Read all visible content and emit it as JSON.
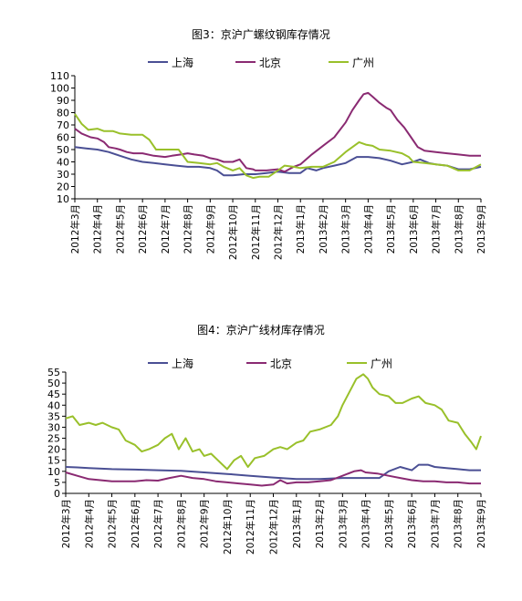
{
  "colors": {
    "上海": "#4a4f94",
    "北京": "#8a2a72",
    "广州": "#99c02a"
  },
  "chart_data": [
    {
      "type": "line",
      "title": "图3：京沪广螺纹钢库存情况",
      "ylim": [
        10,
        110
      ],
      "yticks": [
        10,
        20,
        30,
        40,
        50,
        60,
        70,
        80,
        90,
        100,
        110
      ],
      "x_tick_labels": [
        "2012年3月",
        "2012年4月",
        "2012年5月",
        "2012年6月",
        "2012年7月",
        "2012年8月",
        "2012年9月",
        "2012年10月",
        "2012年11月",
        "2012年12月",
        "2013年1月",
        "2013年2月",
        "2013年3月",
        "2013年4月",
        "2013年5月",
        "2013年6月",
        "2013年7月",
        "2013年8月",
        "2013年9月"
      ],
      "x_range": [
        0,
        18
      ],
      "grid": false,
      "legend_position": "top",
      "series": [
        {
          "name": "上海",
          "values": [
            [
              0,
              52
            ],
            [
              0.5,
              51
            ],
            [
              1,
              50
            ],
            [
              1.5,
              48
            ],
            [
              2,
              45
            ],
            [
              2.5,
              42
            ],
            [
              3,
              40
            ],
            [
              3.5,
              39
            ],
            [
              4,
              38
            ],
            [
              4.5,
              37
            ],
            [
              5,
              36
            ],
            [
              5.5,
              36
            ],
            [
              6,
              35
            ],
            [
              6.3,
              33
            ],
            [
              6.6,
              29
            ],
            [
              7,
              29
            ],
            [
              7.5,
              30
            ],
            [
              8,
              30
            ],
            [
              8.5,
              31
            ],
            [
              9,
              32
            ],
            [
              9.5,
              31
            ],
            [
              10,
              31
            ],
            [
              10.3,
              35
            ],
            [
              10.7,
              33
            ],
            [
              11,
              35
            ],
            [
              11.5,
              37
            ],
            [
              12,
              39
            ],
            [
              12.5,
              44
            ],
            [
              13,
              44
            ],
            [
              13.5,
              43
            ],
            [
              14,
              41
            ],
            [
              14.5,
              38
            ],
            [
              15,
              40
            ],
            [
              15.3,
              42
            ],
            [
              15.7,
              39
            ],
            [
              16,
              38
            ],
            [
              16.5,
              37
            ],
            [
              17,
              34
            ],
            [
              17.5,
              34
            ],
            [
              18,
              36
            ]
          ]
        },
        {
          "name": "北京",
          "values": [
            [
              0,
              67
            ],
            [
              0.3,
              63
            ],
            [
              0.7,
              60
            ],
            [
              1,
              59
            ],
            [
              1.3,
              56
            ],
            [
              1.5,
              52
            ],
            [
              1.8,
              51
            ],
            [
              2,
              50
            ],
            [
              2.3,
              48
            ],
            [
              2.6,
              47
            ],
            [
              3,
              47
            ],
            [
              3.5,
              45
            ],
            [
              4,
              44
            ],
            [
              4.3,
              45
            ],
            [
              4.7,
              46
            ],
            [
              5,
              47
            ],
            [
              5.3,
              46
            ],
            [
              5.7,
              45
            ],
            [
              6,
              43
            ],
            [
              6.3,
              42
            ],
            [
              6.6,
              40
            ],
            [
              7,
              40
            ],
            [
              7.3,
              42
            ],
            [
              7.6,
              35
            ],
            [
              7.9,
              34
            ],
            [
              8,
              33
            ],
            [
              8.5,
              33
            ],
            [
              9,
              34
            ],
            [
              9.3,
              32
            ],
            [
              9.7,
              36
            ],
            [
              10,
              38
            ],
            [
              10.5,
              46
            ],
            [
              11,
              53
            ],
            [
              11.5,
              60
            ],
            [
              12,
              72
            ],
            [
              12.3,
              82
            ],
            [
              12.6,
              90
            ],
            [
              12.8,
              95
            ],
            [
              13,
              96
            ],
            [
              13.2,
              93
            ],
            [
              13.5,
              88
            ],
            [
              13.8,
              84
            ],
            [
              14,
              82
            ],
            [
              14.3,
              74
            ],
            [
              14.6,
              68
            ],
            [
              14.9,
              60
            ],
            [
              15.2,
              52
            ],
            [
              15.5,
              49
            ],
            [
              16,
              48
            ],
            [
              16.5,
              47
            ],
            [
              17,
              46
            ],
            [
              17.5,
              45
            ],
            [
              18,
              45
            ]
          ]
        },
        {
          "name": "广州",
          "values": [
            [
              0,
              79
            ],
            [
              0.3,
              71
            ],
            [
              0.6,
              66
            ],
            [
              1,
              67
            ],
            [
              1.3,
              65
            ],
            [
              1.7,
              65
            ],
            [
              2,
              63
            ],
            [
              2.5,
              62
            ],
            [
              3,
              62
            ],
            [
              3.3,
              58
            ],
            [
              3.6,
              50
            ],
            [
              4,
              50
            ],
            [
              4.3,
              50
            ],
            [
              4.6,
              50
            ],
            [
              5,
              40
            ],
            [
              5.5,
              39
            ],
            [
              6,
              38
            ],
            [
              6.3,
              39
            ],
            [
              6.6,
              36
            ],
            [
              7,
              33
            ],
            [
              7.3,
              35
            ],
            [
              7.6,
              29
            ],
            [
              7.9,
              27
            ],
            [
              8.2,
              28
            ],
            [
              8.6,
              28
            ],
            [
              9,
              33
            ],
            [
              9.3,
              37
            ],
            [
              9.7,
              36
            ],
            [
              10,
              35
            ],
            [
              10.5,
              36
            ],
            [
              11,
              36
            ],
            [
              11.5,
              40
            ],
            [
              12,
              48
            ],
            [
              12.3,
              52
            ],
            [
              12.6,
              56
            ],
            [
              12.9,
              54
            ],
            [
              13.2,
              53
            ],
            [
              13.5,
              50
            ],
            [
              14,
              49
            ],
            [
              14.5,
              47
            ],
            [
              14.8,
              44
            ],
            [
              15,
              40
            ],
            [
              15.5,
              39
            ],
            [
              16,
              38
            ],
            [
              16.5,
              37
            ],
            [
              17,
              33
            ],
            [
              17.5,
              33
            ],
            [
              18,
              38
            ]
          ]
        }
      ]
    },
    {
      "type": "line",
      "title": "图4：京沪广线材库存情况",
      "ylim": [
        0,
        55
      ],
      "yticks": [
        0,
        5,
        10,
        15,
        20,
        25,
        30,
        35,
        40,
        45,
        50,
        55
      ],
      "x_tick_labels": [
        "2012年3月",
        "2012年4月",
        "2012年5月",
        "2012年6月",
        "2012年7月",
        "2012年8月",
        "2012年9月",
        "2012年10月",
        "2012年11月",
        "2012年12月",
        "2013年1月",
        "2013年2月",
        "2013年3月",
        "2013年4月",
        "2013年5月",
        "2013年6月",
        "2013年7月",
        "2013年8月",
        "2013年9月"
      ],
      "x_range": [
        0,
        18
      ],
      "grid": false,
      "legend_position": "top",
      "series": [
        {
          "name": "上海",
          "values": [
            [
              0,
              12
            ],
            [
              0.5,
              11.8
            ],
            [
              1,
              11.5
            ],
            [
              2,
              11
            ],
            [
              3,
              10.8
            ],
            [
              4,
              10.5
            ],
            [
              5,
              10.2
            ],
            [
              6,
              9.5
            ],
            [
              7,
              8.8
            ],
            [
              8,
              8
            ],
            [
              9,
              7.2
            ],
            [
              10,
              6.5
            ],
            [
              11,
              6.5
            ],
            [
              12,
              7
            ],
            [
              13,
              7
            ],
            [
              13.6,
              7
            ],
            [
              14,
              10
            ],
            [
              14.5,
              12
            ],
            [
              15,
              10.5
            ],
            [
              15.3,
              13
            ],
            [
              15.7,
              13
            ],
            [
              16,
              12
            ],
            [
              16.5,
              11.5
            ],
            [
              17,
              11
            ],
            [
              17.5,
              10.5
            ],
            [
              18,
              10.5
            ]
          ]
        },
        {
          "name": "北京",
          "values": [
            [
              0,
              9.5
            ],
            [
              0.5,
              8
            ],
            [
              1,
              6.5
            ],
            [
              1.5,
              6
            ],
            [
              2,
              5.5
            ],
            [
              3,
              5.5
            ],
            [
              3.5,
              6
            ],
            [
              4,
              5.8
            ],
            [
              4.5,
              7
            ],
            [
              5,
              8
            ],
            [
              5.5,
              7
            ],
            [
              6,
              6.5
            ],
            [
              6.5,
              5.5
            ],
            [
              7,
              5
            ],
            [
              7.5,
              4.5
            ],
            [
              8,
              4
            ],
            [
              8.5,
              3.5
            ],
            [
              9,
              4
            ],
            [
              9.3,
              6
            ],
            [
              9.6,
              4.5
            ],
            [
              10,
              5
            ],
            [
              10.5,
              5
            ],
            [
              11,
              5.5
            ],
            [
              11.5,
              6
            ],
            [
              12,
              8
            ],
            [
              12.5,
              10
            ],
            [
              12.8,
              10.5
            ],
            [
              13,
              9.5
            ],
            [
              13.5,
              9
            ],
            [
              14,
              8
            ],
            [
              14.5,
              7
            ],
            [
              15,
              6
            ],
            [
              15.5,
              5.5
            ],
            [
              16,
              5.5
            ],
            [
              16.5,
              5
            ],
            [
              17,
              5
            ],
            [
              17.5,
              4.5
            ],
            [
              18,
              4.5
            ]
          ]
        },
        {
          "name": "广州",
          "values": [
            [
              0,
              34
            ],
            [
              0.3,
              35
            ],
            [
              0.6,
              31
            ],
            [
              1,
              32
            ],
            [
              1.3,
              31
            ],
            [
              1.6,
              32
            ],
            [
              2,
              30
            ],
            [
              2.3,
              29
            ],
            [
              2.6,
              24
            ],
            [
              3,
              22
            ],
            [
              3.3,
              19
            ],
            [
              3.6,
              20
            ],
            [
              4,
              22
            ],
            [
              4.3,
              25
            ],
            [
              4.6,
              27
            ],
            [
              4.9,
              20
            ],
            [
              5.2,
              25
            ],
            [
              5.5,
              19
            ],
            [
              5.8,
              20
            ],
            [
              6,
              17
            ],
            [
              6.3,
              18
            ],
            [
              6.6,
              15
            ],
            [
              7,
              11
            ],
            [
              7.3,
              15
            ],
            [
              7.6,
              17
            ],
            [
              7.9,
              12
            ],
            [
              8.2,
              16
            ],
            [
              8.6,
              17
            ],
            [
              9,
              20
            ],
            [
              9.3,
              21
            ],
            [
              9.6,
              20
            ],
            [
              10,
              23
            ],
            [
              10.3,
              24
            ],
            [
              10.6,
              28
            ],
            [
              11,
              29
            ],
            [
              11.5,
              31
            ],
            [
              11.8,
              35
            ],
            [
              12,
              40
            ],
            [
              12.3,
              46
            ],
            [
              12.6,
              52
            ],
            [
              12.9,
              54
            ],
            [
              13.1,
              52
            ],
            [
              13.3,
              48
            ],
            [
              13.6,
              45
            ],
            [
              14,
              44
            ],
            [
              14.3,
              41
            ],
            [
              14.6,
              41
            ],
            [
              15,
              43
            ],
            [
              15.3,
              44
            ],
            [
              15.6,
              41
            ],
            [
              16,
              40
            ],
            [
              16.3,
              38
            ],
            [
              16.6,
              33
            ],
            [
              17,
              32
            ],
            [
              17.3,
              27
            ],
            [
              17.6,
              23
            ],
            [
              17.8,
              20
            ],
            [
              18,
              26
            ]
          ]
        }
      ]
    }
  ]
}
